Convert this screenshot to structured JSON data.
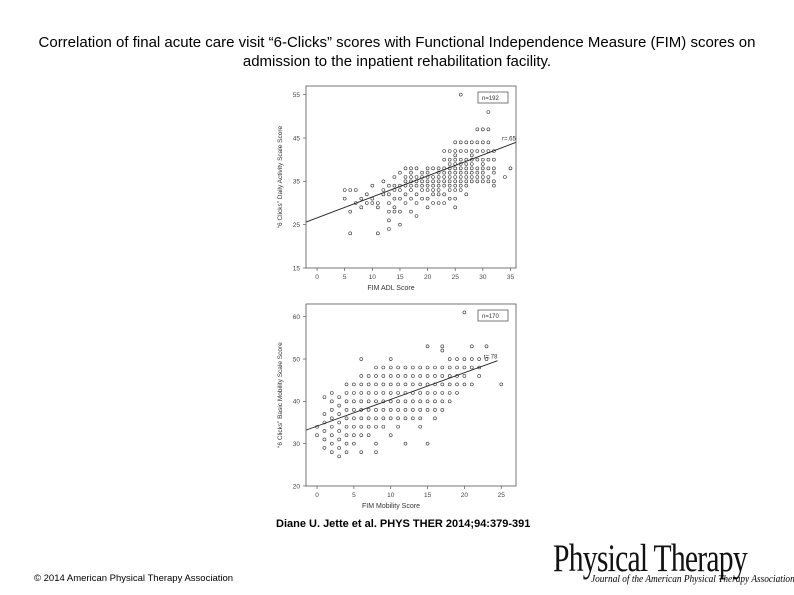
{
  "slide": {
    "title": "Correlation of final acute care visit “6-Clicks” scores with Functional Independence Measure (FIM) scores on admission to the inpatient rehabilitation facility.",
    "citation": "Diane U. Jette et al. PHYS THER 2014;94:379-391",
    "copyright": "© 2014 American Physical Therapy Association",
    "logo": {
      "main": "Physical Therapy",
      "sub": "Journal of the American Physical Therapy Association"
    }
  },
  "chart_data": [
    {
      "type": "scatter",
      "xlabel": "FIM ADL Score",
      "ylabel": "“6 Clicks” Daily Activity Scale Score",
      "xlim": [
        -2,
        36
      ],
      "ylim": [
        15,
        57
      ],
      "xticks": [
        0,
        5,
        10,
        15,
        20,
        25,
        30,
        35
      ],
      "yticks": [
        15,
        25,
        35,
        45,
        55
      ],
      "annotations": {
        "n": "n=192",
        "r": "r=.65"
      },
      "regression": {
        "x": [
          -2,
          36
        ],
        "y": [
          25.6,
          44.0
        ]
      },
      "points": [
        [
          5,
          33
        ],
        [
          6,
          33
        ],
        [
          5,
          31
        ],
        [
          6,
          28
        ],
        [
          6,
          23
        ],
        [
          7,
          30
        ],
        [
          7,
          33
        ],
        [
          8,
          31
        ],
        [
          8,
          29
        ],
        [
          9,
          30
        ],
        [
          9,
          32
        ],
        [
          10,
          34
        ],
        [
          10,
          31
        ],
        [
          10,
          30
        ],
        [
          11,
          30
        ],
        [
          11,
          23
        ],
        [
          11,
          29
        ],
        [
          12,
          35
        ],
        [
          12,
          32
        ],
        [
          12,
          33
        ],
        [
          13,
          34
        ],
        [
          13,
          32
        ],
        [
          13,
          30
        ],
        [
          13,
          28
        ],
        [
          13,
          26
        ],
        [
          13,
          24
        ],
        [
          14,
          34
        ],
        [
          14,
          36
        ],
        [
          14,
          33
        ],
        [
          14,
          31
        ],
        [
          14,
          29
        ],
        [
          14,
          28
        ],
        [
          15,
          34
        ],
        [
          15,
          33
        ],
        [
          15,
          31
        ],
        [
          15,
          28
        ],
        [
          15,
          25
        ],
        [
          15,
          37
        ],
        [
          16,
          34
        ],
        [
          16,
          35
        ],
        [
          16,
          36
        ],
        [
          16,
          32
        ],
        [
          16,
          30
        ],
        [
          16,
          38
        ],
        [
          17,
          34
        ],
        [
          17,
          35
        ],
        [
          17,
          36
        ],
        [
          17,
          33
        ],
        [
          17,
          37
        ],
        [
          17,
          31
        ],
        [
          17,
          28
        ],
        [
          17,
          38
        ],
        [
          18,
          34
        ],
        [
          18,
          35
        ],
        [
          18,
          32
        ],
        [
          18,
          36
        ],
        [
          18,
          30
        ],
        [
          18,
          38
        ],
        [
          18,
          27
        ],
        [
          19,
          35
        ],
        [
          19,
          36
        ],
        [
          19,
          33
        ],
        [
          19,
          37
        ],
        [
          19,
          34
        ],
        [
          19,
          31
        ],
        [
          20,
          35
        ],
        [
          20,
          36
        ],
        [
          20,
          33
        ],
        [
          20,
          38
        ],
        [
          20,
          34
        ],
        [
          20,
          31
        ],
        [
          20,
          29
        ],
        [
          20,
          37
        ],
        [
          21,
          35
        ],
        [
          21,
          34
        ],
        [
          21,
          36
        ],
        [
          21,
          32
        ],
        [
          21,
          38
        ],
        [
          21,
          33
        ],
        [
          21,
          30
        ],
        [
          22,
          35
        ],
        [
          22,
          34
        ],
        [
          22,
          36
        ],
        [
          22,
          37
        ],
        [
          22,
          33
        ],
        [
          22,
          32
        ],
        [
          22,
          38
        ],
        [
          22,
          30
        ],
        [
          23,
          36
        ],
        [
          23,
          35
        ],
        [
          23,
          37
        ],
        [
          23,
          34
        ],
        [
          23,
          38
        ],
        [
          23,
          40
        ],
        [
          23,
          42
        ],
        [
          23,
          32
        ],
        [
          23,
          30
        ],
        [
          24,
          36
        ],
        [
          24,
          35
        ],
        [
          24,
          37
        ],
        [
          24,
          39
        ],
        [
          24,
          40
        ],
        [
          24,
          34
        ],
        [
          24,
          38
        ],
        [
          24,
          33
        ],
        [
          24,
          31
        ],
        [
          24,
          42
        ],
        [
          25,
          36
        ],
        [
          25,
          35
        ],
        [
          25,
          37
        ],
        [
          25,
          38
        ],
        [
          25,
          39
        ],
        [
          25,
          40
        ],
        [
          25,
          41
        ],
        [
          25,
          42
        ],
        [
          25,
          34
        ],
        [
          25,
          33
        ],
        [
          25,
          31
        ],
        [
          25,
          44
        ],
        [
          25,
          29
        ],
        [
          26,
          36
        ],
        [
          26,
          37
        ],
        [
          26,
          38
        ],
        [
          26,
          39
        ],
        [
          26,
          40
        ],
        [
          26,
          42
        ],
        [
          26,
          35
        ],
        [
          26,
          34
        ],
        [
          26,
          44
        ],
        [
          26,
          55
        ],
        [
          26,
          33
        ],
        [
          27,
          36
        ],
        [
          27,
          38
        ],
        [
          27,
          39
        ],
        [
          27,
          40
        ],
        [
          27,
          37
        ],
        [
          27,
          42
        ],
        [
          27,
          35
        ],
        [
          27,
          34
        ],
        [
          27,
          44
        ],
        [
          27,
          32
        ],
        [
          28,
          36
        ],
        [
          28,
          37
        ],
        [
          28,
          38
        ],
        [
          28,
          39
        ],
        [
          28,
          40
        ],
        [
          28,
          41
        ],
        [
          28,
          42
        ],
        [
          28,
          35
        ],
        [
          28,
          44
        ],
        [
          29,
          36
        ],
        [
          29,
          38
        ],
        [
          29,
          40
        ],
        [
          29,
          42
        ],
        [
          29,
          37
        ],
        [
          29,
          44
        ],
        [
          29,
          35
        ],
        [
          29,
          47
        ],
        [
          30,
          36
        ],
        [
          30,
          38
        ],
        [
          30,
          40
        ],
        [
          30,
          42
        ],
        [
          30,
          44
        ],
        [
          30,
          47
        ],
        [
          30,
          37
        ],
        [
          30,
          35
        ],
        [
          30,
          39
        ],
        [
          31,
          36
        ],
        [
          31,
          38
        ],
        [
          31,
          40
        ],
        [
          31,
          42
        ],
        [
          31,
          44
        ],
        [
          31,
          47
        ],
        [
          31,
          51
        ],
        [
          31,
          35
        ],
        [
          32,
          35
        ],
        [
          32,
          37
        ],
        [
          32,
          38
        ],
        [
          32,
          42
        ],
        [
          32,
          40
        ],
        [
          32,
          34
        ],
        [
          34,
          36
        ],
        [
          35,
          38
        ]
      ]
    },
    {
      "type": "scatter",
      "xlabel": "FIM Mobility Score",
      "ylabel": "“6 Clicks” Basic Mobility Scale Score",
      "xlim": [
        -1.5,
        27
      ],
      "ylim": [
        20,
        63
      ],
      "xticks": [
        0,
        5,
        10,
        15,
        20,
        25
      ],
      "yticks": [
        20,
        30,
        40,
        50,
        60
      ],
      "annotations": {
        "n": "n=170",
        "r": "r=.78"
      },
      "regression": {
        "x": [
          -1.5,
          24.5
        ],
        "y": [
          33.2,
          49.6
        ]
      },
      "points": [
        [
          0,
          34
        ],
        [
          0,
          32
        ],
        [
          1,
          35
        ],
        [
          1,
          33
        ],
        [
          1,
          31
        ],
        [
          1,
          29
        ],
        [
          1,
          37
        ],
        [
          2,
          34
        ],
        [
          2,
          36
        ],
        [
          2,
          32
        ],
        [
          2,
          30
        ],
        [
          2,
          28
        ],
        [
          2,
          38
        ],
        [
          2,
          40
        ],
        [
          2,
          42
        ],
        [
          3,
          35
        ],
        [
          3,
          33
        ],
        [
          3,
          37
        ],
        [
          3,
          31
        ],
        [
          3,
          39
        ],
        [
          3,
          41
        ],
        [
          3,
          29
        ],
        [
          4,
          36
        ],
        [
          4,
          34
        ],
        [
          4,
          38
        ],
        [
          4,
          32
        ],
        [
          4,
          40
        ],
        [
          4,
          30
        ],
        [
          4,
          42
        ],
        [
          4,
          28
        ],
        [
          4,
          44
        ],
        [
          5,
          36
        ],
        [
          5,
          38
        ],
        [
          5,
          34
        ],
        [
          5,
          40
        ],
        [
          5,
          32
        ],
        [
          5,
          42
        ],
        [
          5,
          30
        ],
        [
          5,
          44
        ],
        [
          6,
          38
        ],
        [
          6,
          36
        ],
        [
          6,
          40
        ],
        [
          6,
          34
        ],
        [
          6,
          42
        ],
        [
          6,
          32
        ],
        [
          6,
          44
        ],
        [
          6,
          46
        ],
        [
          7,
          38
        ],
        [
          7,
          40
        ],
        [
          7,
          36
        ],
        [
          7,
          42
        ],
        [
          7,
          34
        ],
        [
          7,
          44
        ],
        [
          7,
          46
        ],
        [
          7,
          32
        ],
        [
          8,
          40
        ],
        [
          8,
          38
        ],
        [
          8,
          42
        ],
        [
          8,
          36
        ],
        [
          8,
          44
        ],
        [
          8,
          46
        ],
        [
          8,
          48
        ],
        [
          8,
          34
        ],
        [
          8,
          30
        ],
        [
          9,
          40
        ],
        [
          9,
          38
        ],
        [
          9,
          42
        ],
        [
          9,
          44
        ],
        [
          9,
          46
        ],
        [
          9,
          48
        ],
        [
          9,
          36
        ],
        [
          9,
          34
        ],
        [
          10,
          40
        ],
        [
          10,
          42
        ],
        [
          10,
          44
        ],
        [
          10,
          38
        ],
        [
          10,
          46
        ],
        [
          10,
          48
        ],
        [
          10,
          36
        ],
        [
          10,
          32
        ],
        [
          11,
          40
        ],
        [
          11,
          42
        ],
        [
          11,
          44
        ],
        [
          11,
          46
        ],
        [
          11,
          38
        ],
        [
          11,
          48
        ],
        [
          11,
          36
        ],
        [
          11,
          34
        ],
        [
          12,
          42
        ],
        [
          12,
          44
        ],
        [
          12,
          40
        ],
        [
          12,
          46
        ],
        [
          12,
          38
        ],
        [
          12,
          48
        ],
        [
          12,
          36
        ],
        [
          13,
          42
        ],
        [
          13,
          44
        ],
        [
          13,
          46
        ],
        [
          13,
          40
        ],
        [
          13,
          38
        ],
        [
          13,
          48
        ],
        [
          13,
          36
        ],
        [
          14,
          42
        ],
        [
          14,
          44
        ],
        [
          14,
          46
        ],
        [
          14,
          40
        ],
        [
          14,
          48
        ],
        [
          14,
          38
        ],
        [
          14,
          36
        ],
        [
          14,
          34
        ],
        [
          15,
          44
        ],
        [
          15,
          46
        ],
        [
          15,
          42
        ],
        [
          15,
          48
        ],
        [
          15,
          40
        ],
        [
          15,
          53
        ],
        [
          15,
          38
        ],
        [
          16,
          44
        ],
        [
          16,
          46
        ],
        [
          16,
          42
        ],
        [
          16,
          48
        ],
        [
          16,
          40
        ],
        [
          16,
          38
        ],
        [
          16,
          36
        ],
        [
          17,
          44
        ],
        [
          17,
          46
        ],
        [
          17,
          48
        ],
        [
          17,
          42
        ],
        [
          17,
          53
        ],
        [
          17,
          40
        ],
        [
          17,
          38
        ],
        [
          18,
          44
        ],
        [
          18,
          46
        ],
        [
          18,
          48
        ],
        [
          18,
          42
        ],
        [
          18,
          50
        ],
        [
          18,
          40
        ],
        [
          19,
          44
        ],
        [
          19,
          46
        ],
        [
          19,
          48
        ],
        [
          19,
          50
        ],
        [
          19,
          42
        ],
        [
          20,
          46
        ],
        [
          20,
          48
        ],
        [
          20,
          44
        ],
        [
          20,
          50
        ],
        [
          20,
          61
        ],
        [
          21,
          48
        ],
        [
          21,
          50
        ],
        [
          21,
          53
        ],
        [
          21,
          44
        ],
        [
          22,
          48
        ],
        [
          22,
          50
        ],
        [
          22,
          46
        ],
        [
          23,
          50
        ],
        [
          23,
          53
        ],
        [
          25,
          44
        ],
        [
          1,
          41
        ],
        [
          3,
          27
        ],
        [
          6,
          28
        ],
        [
          8,
          28
        ],
        [
          12,
          30
        ],
        [
          15,
          30
        ],
        [
          6,
          50
        ],
        [
          10,
          50
        ],
        [
          17,
          52
        ]
      ]
    }
  ]
}
